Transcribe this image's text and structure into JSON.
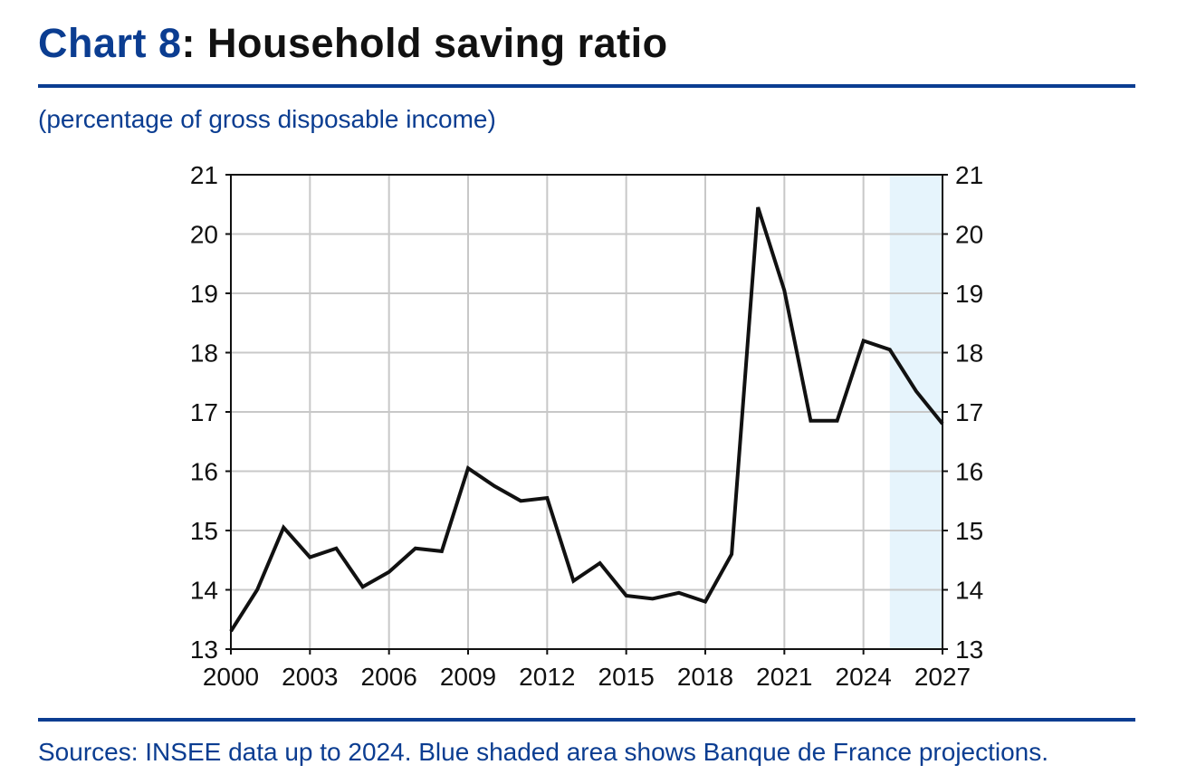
{
  "header": {
    "title_prefix": "Chart 8",
    "title_rest": ": Household saving ratio",
    "subtitle": "(percentage of gross disposable income)"
  },
  "footer": {
    "source": "Sources: INSEE data up to 2024. Blue shaded area shows Banque de France projections."
  },
  "colors": {
    "accent": "#0b3d91",
    "line": "#111111",
    "projection_shade": "#e6f4fc",
    "grid": "#c8c8c8"
  },
  "chart_data": {
    "type": "line",
    "xlim": [
      2000,
      2027
    ],
    "ylim": [
      13,
      21
    ],
    "x_ticks": [
      2000,
      2003,
      2006,
      2009,
      2012,
      2015,
      2018,
      2021,
      2024,
      2027
    ],
    "y_ticks": [
      13,
      14,
      15,
      16,
      17,
      18,
      19,
      20,
      21
    ],
    "grid": true,
    "dual_y_axis": true,
    "projection_range": [
      2025,
      2027
    ],
    "series": [
      {
        "x": [
          2000,
          2001,
          2002,
          2003,
          2004,
          2005,
          2006,
          2007,
          2008,
          2009,
          2010,
          2011,
          2012,
          2013,
          2014,
          2015,
          2016,
          2017,
          2018,
          2019,
          2020,
          2021,
          2022,
          2023,
          2024,
          2025,
          2026,
          2027
        ],
        "values": [
          13.3,
          14.0,
          15.05,
          14.55,
          14.7,
          14.05,
          14.3,
          14.7,
          14.65,
          16.05,
          15.75,
          15.5,
          15.55,
          14.15,
          14.45,
          13.9,
          13.85,
          13.95,
          13.8,
          14.6,
          20.45,
          19.05,
          16.85,
          16.85,
          18.2,
          18.05,
          17.35,
          16.8
        ]
      }
    ]
  }
}
